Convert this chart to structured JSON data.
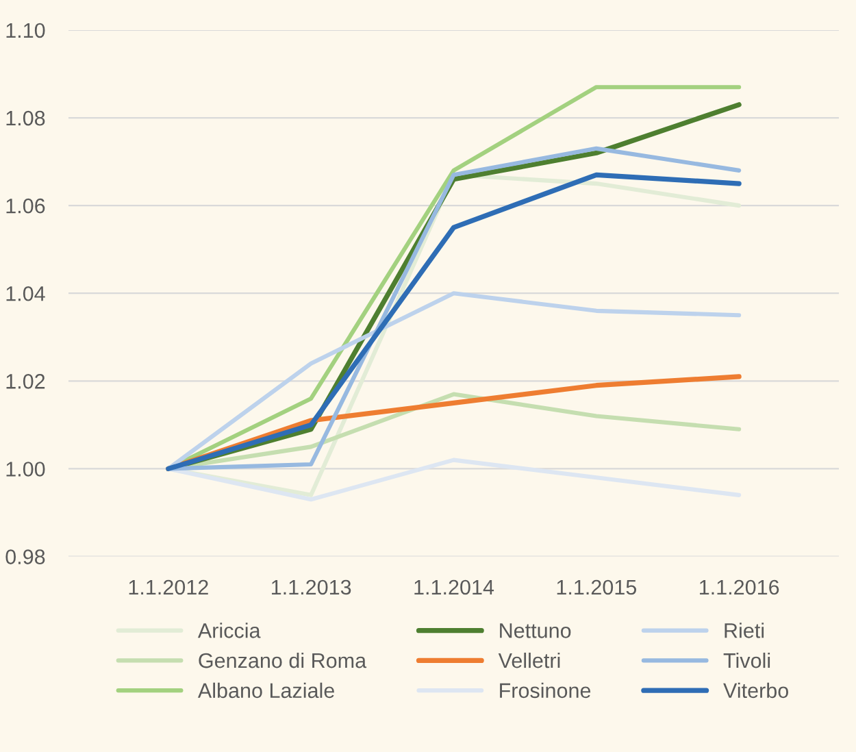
{
  "chart_data": {
    "type": "line",
    "categories": [
      "1.1.2012",
      "1.1.2013",
      "1.1.2014",
      "1.1.2015",
      "1.1.2016"
    ],
    "ylim": [
      0.98,
      1.1
    ],
    "yticks": [
      {
        "value": 0.98,
        "label": "0.98"
      },
      {
        "value": 1.0,
        "label": "1.00"
      },
      {
        "value": 1.02,
        "label": "1.02"
      },
      {
        "value": 1.04,
        "label": "1.04"
      },
      {
        "value": 1.06,
        "label": "1.06"
      },
      {
        "value": 1.08,
        "label": "1.08"
      },
      {
        "value": 1.1,
        "label": "1.10"
      }
    ],
    "grid": "y",
    "legend": "bottom",
    "marker": "none",
    "line_style": "solid",
    "series": [
      {
        "name": "Ariccia",
        "color": "#e2ecd6",
        "values": [
          1.0,
          0.994,
          1.067,
          1.065,
          1.06
        ]
      },
      {
        "name": "Genzano di Roma",
        "color": "#c5deb0",
        "values": [
          1.0,
          1.005,
          1.017,
          1.012,
          1.009
        ]
      },
      {
        "name": "Albano Laziale",
        "color": "#a3d17f",
        "values": [
          1.0,
          1.016,
          1.068,
          1.087,
          1.087
        ]
      },
      {
        "name": "Nettuno",
        "color": "#4e7f30",
        "values": [
          1.0,
          1.009,
          1.066,
          1.072,
          1.083
        ]
      },
      {
        "name": "Velletri",
        "color": "#ee7d31",
        "values": [
          1.0,
          1.011,
          1.015,
          1.019,
          1.021
        ]
      },
      {
        "name": "Frosinone",
        "color": "#dde6f2",
        "values": [
          1.0,
          0.993,
          1.002,
          0.998,
          0.994
        ]
      },
      {
        "name": "Rieti",
        "color": "#bdd2ec",
        "values": [
          1.0,
          1.024,
          1.04,
          1.036,
          1.035
        ]
      },
      {
        "name": "Tivoli",
        "color": "#97b9e0",
        "values": [
          1.0,
          1.001,
          1.067,
          1.073,
          1.068
        ]
      },
      {
        "name": "Viterbo",
        "color": "#2e6db5",
        "values": [
          1.0,
          1.01,
          1.055,
          1.067,
          1.065
        ]
      }
    ]
  }
}
